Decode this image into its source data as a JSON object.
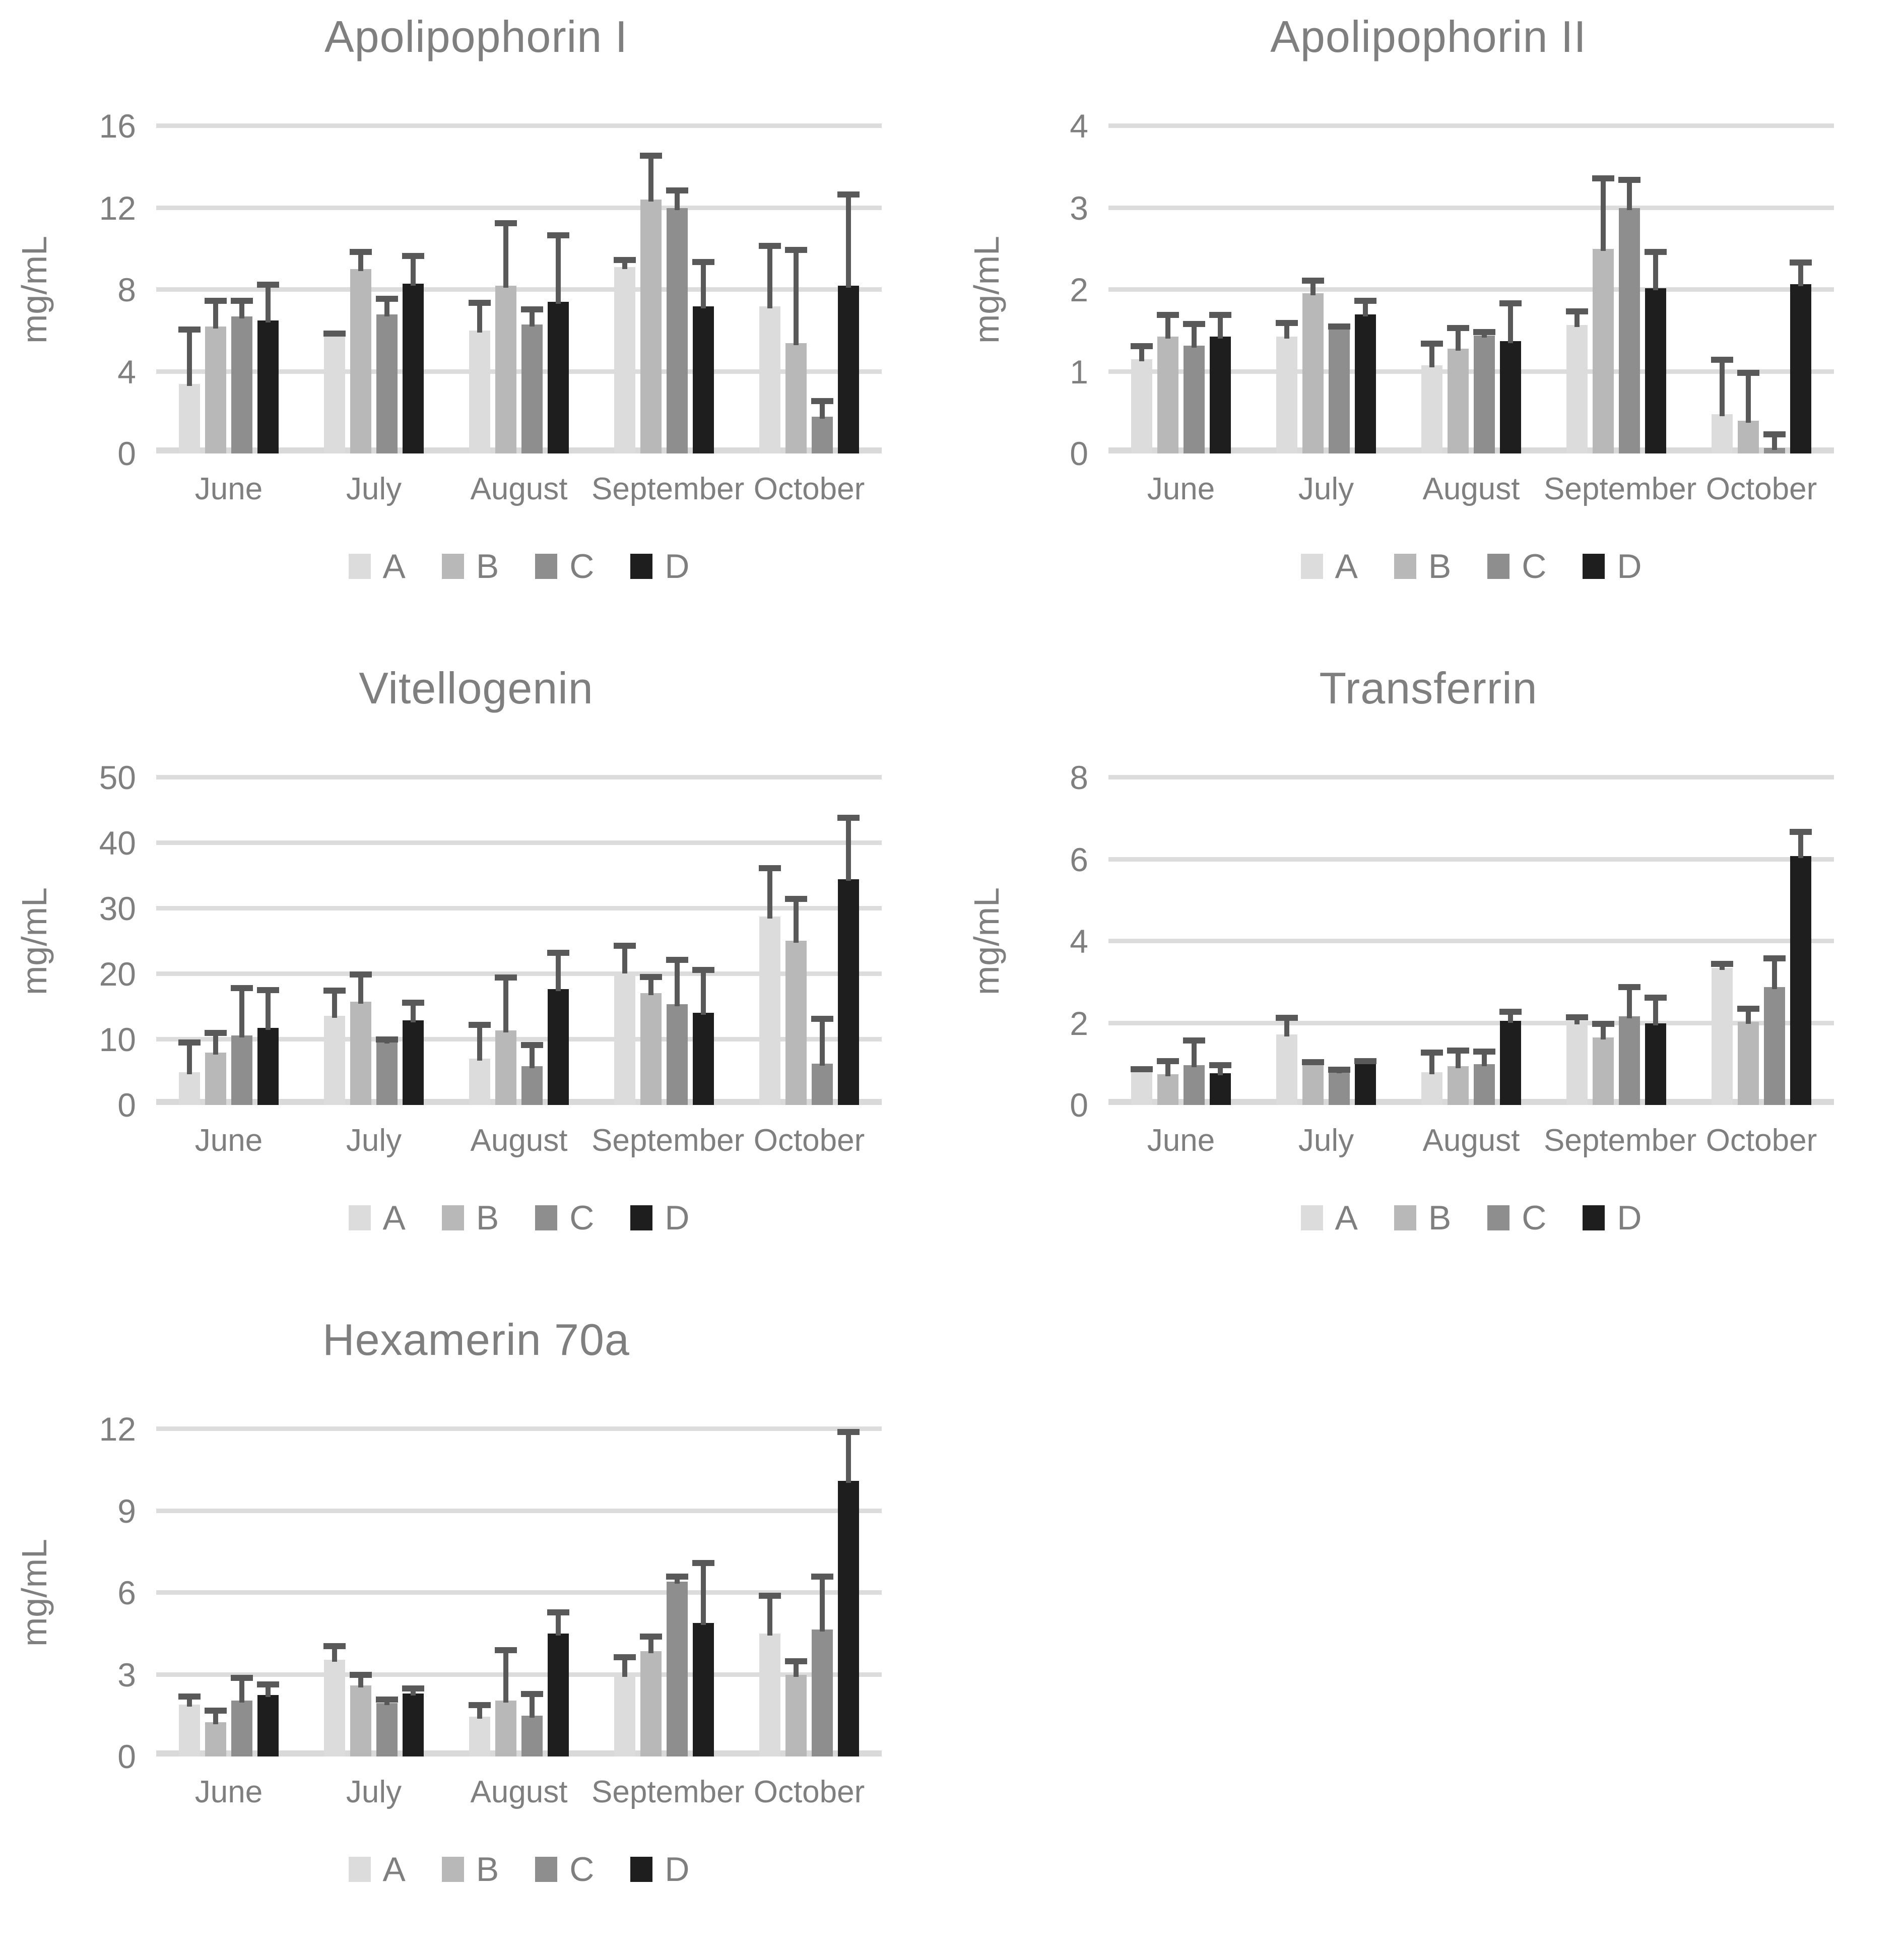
{
  "page": {
    "background": "#ffffff"
  },
  "palette": {
    "A": "#dcdcdc",
    "B": "#b8b8b8",
    "C": "#8e8e8e",
    "D": "#1e1e1e",
    "error_bar": "#595959",
    "gridline": "#dcdcdc",
    "text": "#7f7f7f"
  },
  "legend": {
    "entries": [
      "A",
      "B",
      "C",
      "D"
    ]
  },
  "chart_data": [
    {
      "type": "bar",
      "title": "Apolipophorin I",
      "ylabel": "mg/mL",
      "ylim": [
        0,
        16
      ],
      "yticks": [
        0,
        4,
        8,
        12,
        16
      ],
      "grid": "horizontal",
      "legend_position": "bottom",
      "categories": [
        "June",
        "July",
        "August",
        "September",
        "October"
      ],
      "series": [
        {
          "name": "A",
          "values": [
            3.4,
            5.9,
            6.0,
            9.1,
            7.2
          ],
          "errors_up": [
            2.8,
            0.1,
            1.5,
            0.5,
            3.1
          ]
        },
        {
          "name": "B",
          "values": [
            6.2,
            9.0,
            8.2,
            12.4,
            5.4
          ],
          "errors_up": [
            1.4,
            1.0,
            3.2,
            2.3,
            4.7
          ]
        },
        {
          "name": "C",
          "values": [
            6.7,
            6.8,
            6.3,
            12.0,
            1.8
          ],
          "errors_up": [
            0.9,
            0.9,
            0.9,
            1.0,
            0.9
          ]
        },
        {
          "name": "D",
          "values": [
            6.5,
            8.3,
            7.4,
            7.2,
            8.2
          ],
          "errors_up": [
            1.9,
            1.5,
            3.4,
            2.3,
            4.6
          ]
        }
      ]
    },
    {
      "type": "bar",
      "title": "Apolipophorin II",
      "ylabel": "mg/mL",
      "ylim": [
        0,
        4
      ],
      "yticks": [
        0,
        1,
        2,
        3,
        4
      ],
      "grid": "horizontal",
      "legend_position": "bottom",
      "categories": [
        "June",
        "July",
        "August",
        "September",
        "October"
      ],
      "series": [
        {
          "name": "A",
          "values": [
            1.15,
            1.43,
            1.08,
            1.57,
            0.48
          ],
          "errors_up": [
            0.2,
            0.2,
            0.3,
            0.2,
            0.7
          ]
        },
        {
          "name": "B",
          "values": [
            1.43,
            1.96,
            1.28,
            2.5,
            0.4
          ],
          "errors_up": [
            0.3,
            0.19,
            0.29,
            0.9,
            0.62
          ]
        },
        {
          "name": "C",
          "values": [
            1.32,
            1.56,
            1.44,
            3.0,
            0.07
          ],
          "errors_up": [
            0.3,
            0.03,
            0.08,
            0.38,
            0.2
          ]
        },
        {
          "name": "D",
          "values": [
            1.43,
            1.7,
            1.37,
            2.02,
            2.07
          ],
          "errors_up": [
            0.3,
            0.2,
            0.5,
            0.48,
            0.3
          ]
        }
      ]
    },
    {
      "type": "bar",
      "title": "Vitellogenin",
      "ylabel": "mg/mL",
      "ylim": [
        0,
        50
      ],
      "yticks": [
        0,
        10,
        20,
        30,
        40,
        50
      ],
      "grid": "horizontal",
      "legend_position": "bottom",
      "categories": [
        "June",
        "July",
        "August",
        "September",
        "October"
      ],
      "series": [
        {
          "name": "A",
          "values": [
            5.0,
            13.6,
            7.1,
            20.4,
            28.8
          ],
          "errors_up": [
            5.0,
            4.3,
            5.6,
            4.4,
            7.8
          ]
        },
        {
          "name": "B",
          "values": [
            8.0,
            15.8,
            11.4,
            17.1,
            25.1
          ],
          "errors_up": [
            3.5,
            4.6,
            8.5,
            2.9,
            6.8
          ]
        },
        {
          "name": "C",
          "values": [
            10.6,
            9.7,
            5.9,
            15.4,
            6.3
          ],
          "errors_up": [
            7.7,
            0.8,
            3.7,
            7.2,
            7.3
          ]
        },
        {
          "name": "D",
          "values": [
            11.8,
            12.9,
            17.7,
            14.1,
            34.5
          ],
          "errors_up": [
            6.2,
            3.2,
            6.0,
            7.0,
            9.8
          ]
        }
      ]
    },
    {
      "type": "bar",
      "title": "Transferrin",
      "ylabel": "mg/mL",
      "ylim": [
        0,
        8
      ],
      "yticks": [
        0,
        2,
        4,
        6,
        8
      ],
      "grid": "horizontal",
      "legend_position": "bottom",
      "categories": [
        "June",
        "July",
        "August",
        "September",
        "October"
      ],
      "series": [
        {
          "name": "A",
          "values": [
            0.85,
            1.72,
            0.8,
            2.02,
            3.35
          ],
          "errors_up": [
            0.1,
            0.48,
            0.55,
            0.2,
            0.17
          ]
        },
        {
          "name": "B",
          "values": [
            0.75,
            1.07,
            0.95,
            1.65,
            2.03
          ],
          "errors_up": [
            0.4,
            0.05,
            0.45,
            0.4,
            0.39
          ]
        },
        {
          "name": "C",
          "values": [
            0.97,
            0.82,
            1.0,
            2.17,
            2.88
          ],
          "errors_up": [
            0.68,
            0.11,
            0.38,
            0.78,
            0.77
          ]
        },
        {
          "name": "D",
          "values": [
            0.78,
            1.07,
            2.05,
            2.0,
            6.08
          ],
          "errors_up": [
            0.27,
            0.08,
            0.3,
            0.7,
            0.67
          ]
        }
      ]
    },
    {
      "type": "bar",
      "title": "Hexamerin 70a",
      "ylabel": "mg/mL",
      "ylim": [
        0,
        12
      ],
      "yticks": [
        0,
        3,
        6,
        9,
        12
      ],
      "grid": "horizontal",
      "legend_position": "bottom",
      "categories": [
        "June",
        "July",
        "August",
        "September",
        "October"
      ],
      "series": [
        {
          "name": "A",
          "values": [
            1.9,
            3.55,
            1.45,
            3.0,
            4.5
          ],
          "errors_up": [
            0.4,
            0.6,
            0.55,
            0.75,
            1.5
          ]
        },
        {
          "name": "B",
          "values": [
            1.25,
            2.6,
            2.05,
            3.85,
            3.0
          ],
          "errors_up": [
            0.55,
            0.5,
            1.95,
            0.65,
            0.6
          ]
        },
        {
          "name": "C",
          "values": [
            2.05,
            1.95,
            1.5,
            6.4,
            4.65
          ],
          "errors_up": [
            0.95,
            0.25,
            0.9,
            0.3,
            2.05
          ]
        },
        {
          "name": "D",
          "values": [
            2.25,
            2.3,
            4.5,
            4.9,
            10.1
          ],
          "errors_up": [
            0.5,
            0.3,
            0.9,
            2.3,
            1.9
          ]
        }
      ]
    }
  ]
}
